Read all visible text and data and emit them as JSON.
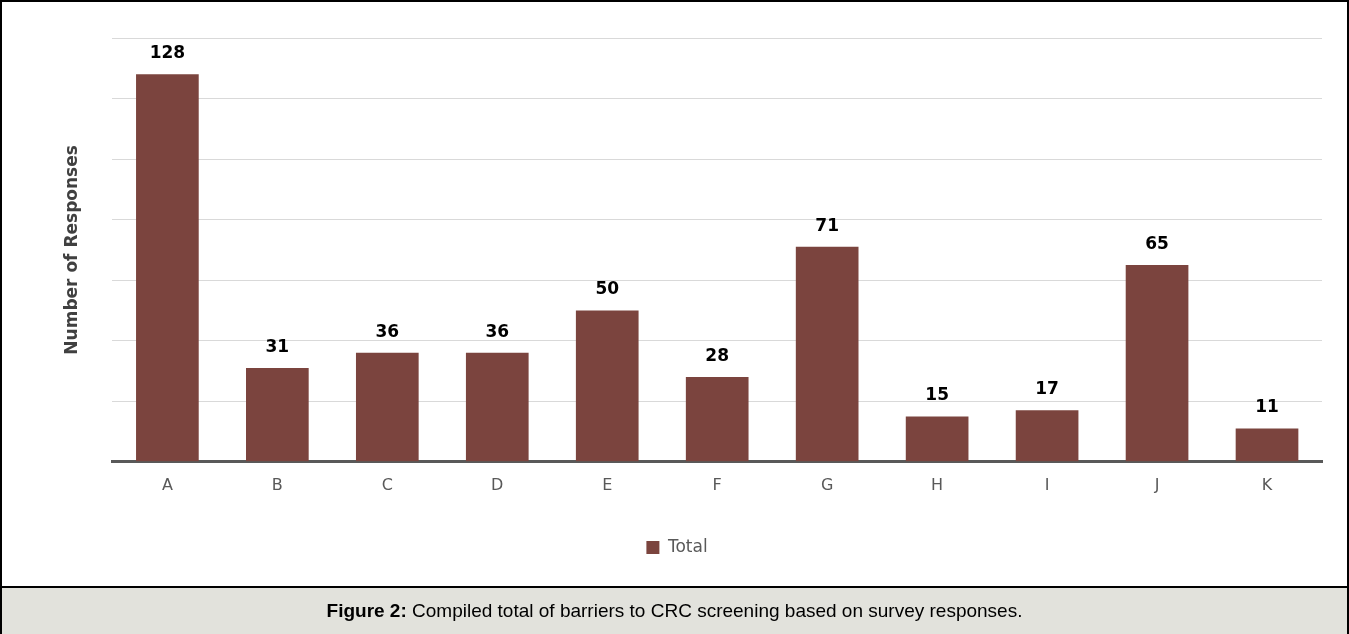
{
  "chart_data": {
    "type": "bar",
    "ylabel": "Number of Responses",
    "categories": [
      "A",
      "B",
      "C",
      "D",
      "E",
      "F",
      "G",
      "H",
      "I",
      "J",
      "K"
    ],
    "series": [
      {
        "name": "Total",
        "color": "#7b443e",
        "values": [
          128,
          31,
          36,
          36,
          50,
          28,
          71,
          15,
          17,
          65,
          11
        ]
      }
    ],
    "ylim": [
      0,
      140
    ],
    "yticks": [
      {
        "value": 0,
        "label": null
      },
      {
        "value": 20,
        "label": null
      },
      {
        "value": 40,
        "label": null
      },
      {
        "value": 60,
        "label": null
      },
      {
        "value": 80,
        "label": null
      },
      {
        "value": 100,
        "label": null
      },
      {
        "value": 120,
        "label": null
      },
      {
        "value": 140,
        "label": null
      }
    ],
    "tick_labels": "x",
    "grid": "y",
    "legend": "bottom",
    "data_labels": true,
    "annotations": [
      "Figure 2: Compiled total of barriers to CRC screening based on survey responses."
    ]
  }
}
